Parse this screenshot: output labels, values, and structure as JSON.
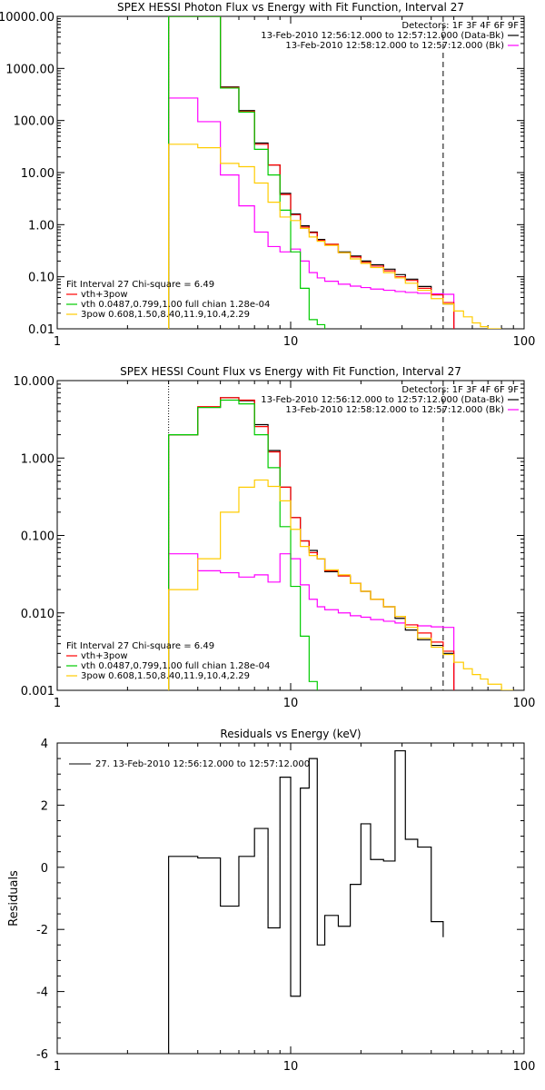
{
  "chart_data": [
    {
      "type": "line",
      "title": "SPEX HESSI Photon Flux vs Energy with Fit Function, Interval 27",
      "xlabel": "",
      "ylabel": "",
      "xscale": "log",
      "yscale": "log",
      "xlim": [
        1,
        100
      ],
      "ylim": [
        0.01,
        10000
      ],
      "x_ticks": [
        "1",
        "10",
        "100"
      ],
      "y_ticks": [
        "0.01",
        "0.10",
        "1.00",
        "10.00",
        "100.00",
        "1000.00",
        "10000.00"
      ],
      "legend_top": [
        "Detectors: 1F 3F 4F 6F 9F",
        "13-Feb-2010 12:56:12.000 to 12:57:12.000 (Data-Bk)",
        "13-Feb-2010 12:58:12.000 to 12:57:12.000 (Bk)"
      ],
      "legend_bottom": [
        "Fit Interval 27   Chi-square = 6.49",
        "vth+3pow",
        "vth 0.0487,0.799,1.00  full chian 1.28e-04",
        "3pow 0.608,1.50,8.40,11.9,10.4,2.29"
      ],
      "vlines": [
        {
          "x": 3.0,
          "style": "dotted"
        },
        {
          "x": 45.0,
          "style": "dashed"
        }
      ],
      "edges": [
        3.0,
        4.0,
        5.0,
        6.0,
        7.0,
        8.0,
        9.0,
        10.0,
        11.0,
        12.0,
        13.0,
        14.0,
        16.0,
        18.0,
        20.0,
        22.0,
        25.0,
        28.0,
        31.0,
        35.0,
        40.0,
        45.0,
        50.0,
        55.0,
        60.0,
        65.0,
        70.0,
        80.0
      ],
      "series": [
        {
          "name": "Data-Bk",
          "color": "#000000",
          "values": [
            10000,
            10000,
            440,
            155,
            37,
            14,
            4.0,
            1.6,
            0.95,
            0.72,
            0.52,
            0.42,
            0.3,
            0.25,
            0.2,
            0.17,
            0.14,
            0.11,
            0.09,
            0.065,
            0.045,
            0.03
          ]
        },
        {
          "name": "Bk",
          "color": "#ff00ff",
          "values": [
            270,
            95,
            9,
            2.3,
            0.72,
            0.38,
            0.3,
            0.34,
            0.2,
            0.12,
            0.095,
            0.082,
            0.072,
            0.066,
            0.062,
            0.058,
            0.055,
            0.052,
            0.05,
            0.048,
            0.047,
            0.046
          ]
        },
        {
          "name": "vth+3pow",
          "color": "#ff0000",
          "values": [
            10000,
            10000,
            430,
            150,
            35,
            14,
            3.8,
            1.55,
            0.9,
            0.7,
            0.5,
            0.42,
            0.29,
            0.24,
            0.19,
            0.16,
            0.13,
            0.1,
            0.085,
            0.06,
            0.045,
            0.032
          ]
        },
        {
          "name": "vth",
          "color": "#00cc00",
          "values": [
            10000,
            10000,
            420,
            145,
            28,
            9.0,
            1.9,
            0.3,
            0.06,
            0.015,
            0.012
          ]
        },
        {
          "name": "3pow",
          "color": "#ffcc00",
          "values": [
            35,
            30,
            15,
            13,
            6.3,
            2.7,
            1.4,
            1.2,
            0.85,
            0.58,
            0.48,
            0.4,
            0.29,
            0.22,
            0.18,
            0.15,
            0.12,
            0.095,
            0.075,
            0.055,
            0.038,
            0.03,
            0.022,
            0.017,
            0.013,
            0.011,
            0.01
          ]
        }
      ]
    },
    {
      "type": "line",
      "title": "SPEX HESSI Count Flux vs Energy with Fit Function, Interval 27",
      "xlabel": "",
      "ylabel": "",
      "xscale": "log",
      "yscale": "log",
      "xlim": [
        1,
        100
      ],
      "ylim": [
        0.001,
        10
      ],
      "x_ticks": [
        "1",
        "10",
        "100"
      ],
      "y_ticks": [
        "0.001",
        "0.010",
        "0.100",
        "1.000",
        "10.000"
      ],
      "legend_top": [
        "Detectors: 1F 3F 4F 6F 9F",
        "13-Feb-2010 12:56:12.000 to 12:57:12.000 (Data-Bk)",
        "13-Feb-2010 12:58:12.000 to 12:57:12.000 (Bk)"
      ],
      "legend_bottom": [
        "Fit Interval 27   Chi-square = 6.49",
        "vth+3pow",
        "vth 0.0487,0.799,1.00  full chian 1.28e-04",
        "3pow 0.608,1.50,8.40,11.9,10.4,2.29"
      ],
      "vlines": [
        {
          "x": 3.0,
          "style": "dotted"
        },
        {
          "x": 45.0,
          "style": "dashed"
        }
      ],
      "edges": [
        3.0,
        4.0,
        5.0,
        6.0,
        7.0,
        8.0,
        9.0,
        10.0,
        11.0,
        12.0,
        13.0,
        14.0,
        16.0,
        18.0,
        20.0,
        22.0,
        25.0,
        28.0,
        31.0,
        35.0,
        40.0,
        45.0,
        50.0,
        55.0,
        60.0,
        65.0,
        70.0,
        80.0,
        90.0
      ],
      "series": [
        {
          "name": "Data-Bk",
          "color": "#000000",
          "values": [
            2.0,
            4.5,
            6.0,
            5.5,
            2.7,
            1.25,
            0.42,
            0.17,
            0.085,
            0.064,
            0.05,
            0.034,
            0.03,
            0.024,
            0.019,
            0.015,
            0.012,
            0.0085,
            0.006,
            0.0045,
            0.0038,
            0.003
          ]
        },
        {
          "name": "Bk",
          "color": "#ff00ff",
          "values": [
            0.058,
            0.035,
            0.033,
            0.029,
            0.031,
            0.025,
            0.058,
            0.05,
            0.023,
            0.015,
            0.012,
            0.011,
            0.01,
            0.0092,
            0.0088,
            0.0082,
            0.0078,
            0.0074,
            0.007,
            0.0068,
            0.0066,
            0.0065
          ]
        },
        {
          "name": "vth+3pow",
          "color": "#ff0000",
          "values": [
            2.0,
            4.6,
            6.0,
            5.6,
            2.55,
            1.2,
            0.42,
            0.17,
            0.085,
            0.06,
            0.05,
            0.035,
            0.03,
            0.024,
            0.019,
            0.015,
            0.012,
            0.009,
            0.007,
            0.0055,
            0.0042,
            0.0032
          ]
        },
        {
          "name": "vth",
          "color": "#00cc00",
          "values": [
            2.0,
            4.5,
            5.6,
            5.0,
            2.0,
            0.75,
            0.13,
            0.022,
            0.005,
            0.0013
          ]
        },
        {
          "name": "3pow",
          "color": "#ffcc00",
          "values": [
            0.02,
            0.05,
            0.2,
            0.42,
            0.52,
            0.43,
            0.28,
            0.12,
            0.072,
            0.055,
            0.05,
            0.036,
            0.031,
            0.024,
            0.019,
            0.015,
            0.012,
            0.009,
            0.0065,
            0.0047,
            0.0036,
            0.0029,
            0.0023,
            0.0019,
            0.0016,
            0.0014,
            0.0012,
            0.001
          ]
        }
      ]
    },
    {
      "type": "line",
      "title": "Residuals vs Energy (keV)",
      "xlabel": "",
      "ylabel": "Residuals",
      "xscale": "log",
      "yscale": "linear",
      "xlim": [
        1,
        100
      ],
      "ylim": [
        -6,
        4
      ],
      "x_ticks": [
        "1",
        "10",
        "100"
      ],
      "y_ticks": [
        "-6",
        "-4",
        "-2",
        "0",
        "2",
        "4"
      ],
      "legend": [
        "27. 13-Feb-2010 12:56:12.000 to 12:57:12.000"
      ],
      "edges": [
        3.0,
        4.0,
        5.0,
        6.0,
        7.0,
        8.0,
        9.0,
        10.0,
        11.0,
        12.0,
        13.0,
        14.0,
        16.0,
        18.0,
        20.0,
        22.0,
        25.0,
        28.0,
        31.0,
        35.0,
        40.0,
        45.0
      ],
      "series": [
        {
          "name": "27. 13-Feb-2010 12:56:12.000 to 12:57:12.000",
          "color": "#000000",
          "values": [
            0.35,
            0.3,
            -1.25,
            0.35,
            1.25,
            -1.95,
            2.9,
            -4.15,
            2.55,
            3.5,
            -2.5,
            -1.55,
            -1.9,
            -0.55,
            1.4,
            0.25,
            0.2,
            3.75,
            0.9,
            0.65,
            -1.75,
            -2.25
          ]
        }
      ]
    }
  ]
}
